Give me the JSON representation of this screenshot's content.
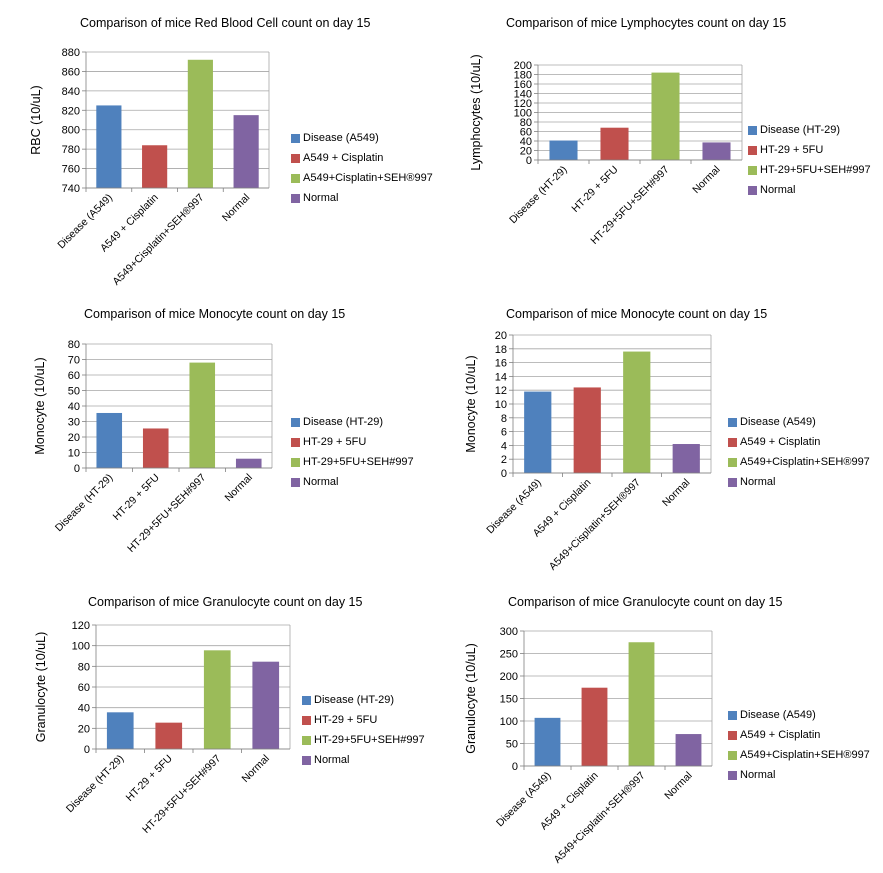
{
  "colors": [
    "#4f81bd",
    "#c0504d",
    "#9bbb59",
    "#8064a2"
  ],
  "chart_data": [
    {
      "type": "bar",
      "title": "Comparison of mice Red Blood Cell count on day 15",
      "ylabel": "RBC (10/uL)",
      "categories": [
        "Disease (A549)",
        "A549 + Cisplatin",
        "A549+Cisplatin+SEH®997",
        "Normal"
      ],
      "values": [
        825,
        784,
        872,
        815
      ],
      "ylim": [
        740,
        880
      ],
      "yticks": [
        740,
        760,
        780,
        800,
        820,
        840,
        860,
        880
      ],
      "legend": [
        "Disease (A549)",
        "A549 + Cisplatin",
        "A549+Cisplatin+SEH®997",
        "Normal"
      ],
      "legend_position": "right",
      "grid": true
    },
    {
      "type": "bar",
      "title": "Comparison of mice Lymphocytes count on day 15",
      "ylabel": "Lymphocytes (10/uL)",
      "categories": [
        "Disease (HT-29)",
        "HT-29 + 5FU",
        "HT-29+5FU+SEH#997",
        "Normal"
      ],
      "values": [
        41,
        68,
        184,
        37
      ],
      "ylim": [
        0,
        200
      ],
      "yticks": [
        0,
        20,
        40,
        60,
        80,
        100,
        120,
        140,
        160,
        180,
        200
      ],
      "legend": [
        "Disease (HT-29)",
        "HT-29 + 5FU",
        "HT-29+5FU+SEH#997",
        "Normal"
      ],
      "legend_position": "right",
      "grid": true
    },
    {
      "type": "bar",
      "title": "Comparison of mice Monocyte count on day 15",
      "ylabel": "Monocyte (10/uL)",
      "categories": [
        "Disease (HT-29)",
        "HT-29 + 5FU",
        "HT-29+5FU+SEH#997",
        "Normal"
      ],
      "values": [
        35.5,
        25.5,
        68,
        6
      ],
      "ylim": [
        0,
        80
      ],
      "yticks": [
        0,
        10,
        20,
        30,
        40,
        50,
        60,
        70,
        80
      ],
      "legend": [
        "Disease (HT-29)",
        "HT-29 + 5FU",
        "HT-29+5FU+SEH#997",
        "Normal"
      ],
      "legend_position": "right",
      "grid": true
    },
    {
      "type": "bar",
      "title": "Comparison of mice Monocyte count on day 15",
      "ylabel": "Monocyte (10/uL)",
      "categories": [
        "Disease (A549)",
        "A549 + Cisplatin",
        "A549+Cisplatin+SEH®997",
        "Normal"
      ],
      "values": [
        11.8,
        12.4,
        17.6,
        4.2
      ],
      "ylim": [
        0,
        20
      ],
      "yticks": [
        0,
        2,
        4,
        6,
        8,
        10,
        12,
        14,
        16,
        18,
        20
      ],
      "legend": [
        "Disease (A549)",
        "A549 + Cisplatin",
        "A549+Cisplatin+SEH®997",
        "Normal"
      ],
      "legend_position": "right",
      "grid": true
    },
    {
      "type": "bar",
      "title": "Comparison of mice Granulocyte count on day 15",
      "ylabel": "Granulocyte (10/uL)",
      "categories": [
        "Disease (HT-29)",
        "HT-29 + 5FU",
        "HT-29+5FU+SEH#997",
        "Normal"
      ],
      "values": [
        35.5,
        25.5,
        95.5,
        84.5
      ],
      "ylim": [
        0,
        120
      ],
      "yticks": [
        0,
        20,
        40,
        60,
        80,
        100,
        120
      ],
      "legend": [
        "Disease (HT-29)",
        "HT-29 + 5FU",
        "HT-29+5FU+SEH#997",
        "Normal"
      ],
      "legend_position": "right",
      "grid": true
    },
    {
      "type": "bar",
      "title": "Comparison of mice Granulocyte count on day 15",
      "ylabel": "Granulocyte (10/uL)",
      "categories": [
        "Disease (A549)",
        "A549 + Cisplatin",
        "A549+Cisplatin+SEH®997",
        "Normal"
      ],
      "values": [
        107,
        174,
        275,
        71
      ],
      "ylim": [
        0,
        300
      ],
      "yticks": [
        0,
        50,
        100,
        150,
        200,
        250,
        300
      ],
      "legend": [
        "Disease (A549)",
        "A549 + Cisplatin",
        "A549+Cisplatin+SEH®997",
        "Normal"
      ],
      "legend_position": "right",
      "grid": true
    }
  ]
}
